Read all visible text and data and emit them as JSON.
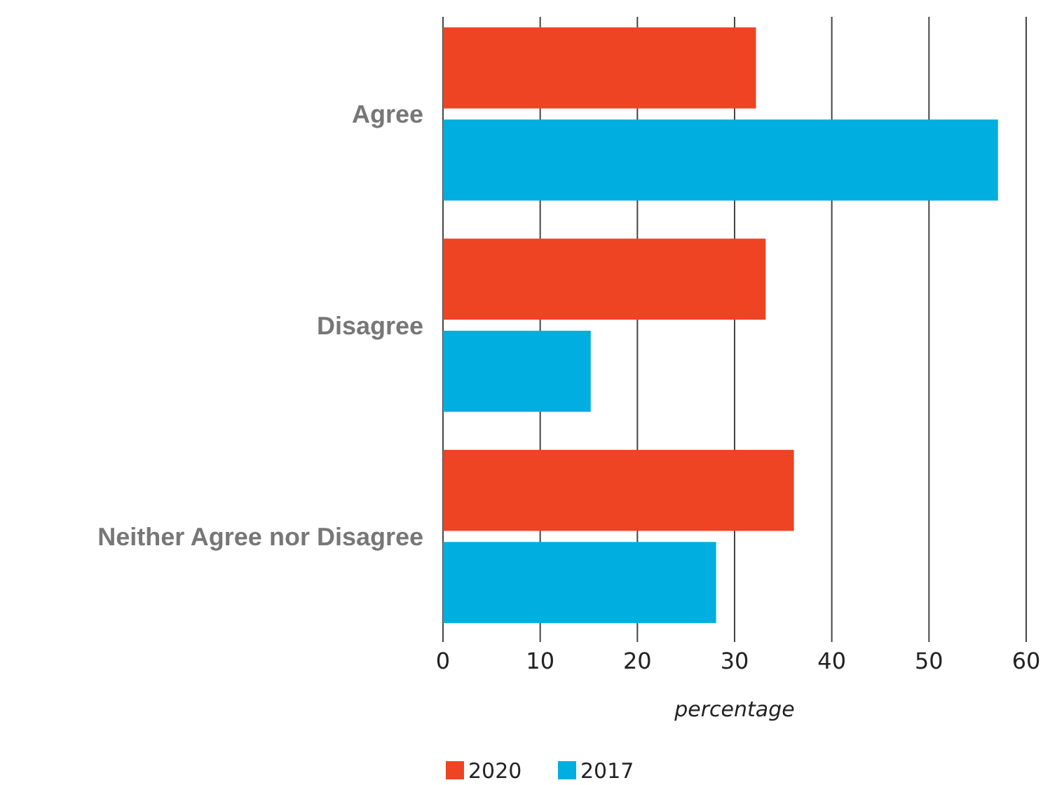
{
  "chart_data": {
    "type": "bar",
    "orientation": "horizontal",
    "categories": [
      "Agree",
      "Disagree",
      "Neither Agree nor Disagree"
    ],
    "series": [
      {
        "name": "2020",
        "color": "#ee4423",
        "values": [
          32.2,
          33.2,
          36.1
        ]
      },
      {
        "name": "2017",
        "color": "#00aee0",
        "values": [
          57.1,
          15.2,
          28.1
        ]
      }
    ],
    "xlabel": "percentage",
    "xlim": [
      0,
      60
    ],
    "xticks": [
      0,
      10,
      20,
      30,
      40,
      50,
      60
    ],
    "grid": "x",
    "legend": "bottom"
  }
}
